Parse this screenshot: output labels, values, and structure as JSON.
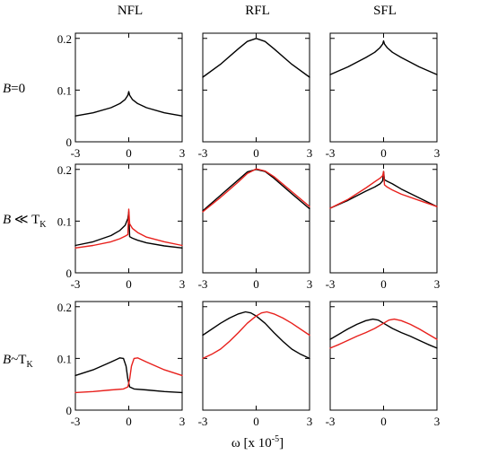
{
  "chart_data": {
    "type": "line",
    "column_titles": [
      "NFL",
      "RFL",
      "SFL"
    ],
    "row_labels": [
      {
        "main": "B",
        "rel": "=0",
        "sub": ""
      },
      {
        "main": "B",
        "rel": " ≪ T",
        "sub": "K"
      },
      {
        "main": "B",
        "rel": "~T",
        "sub": "K"
      }
    ],
    "xlabel": "ω [x 10",
    "xlabel_exp": "-5",
    "xlabel_close": "]",
    "xlim": [
      -3,
      3
    ],
    "ylim": [
      0,
      0.21
    ],
    "xticks": [
      -3,
      0,
      3
    ],
    "yticks": [
      0,
      0.1,
      0.2
    ],
    "xtick_labels": [
      "-3",
      "0",
      "3"
    ],
    "ytick_labels": [
      "0",
      "0.1",
      "0.2"
    ],
    "colors": {
      "black": "#000000",
      "red": "#e8201c"
    },
    "panels": [
      [
        {
          "series": [
            {
              "color": "black",
              "x": [
                -3,
                -2,
                -1,
                -0.5,
                -0.2,
                -0.05,
                0,
                0.05,
                0.2,
                0.5,
                1,
                2,
                3
              ],
              "y": [
                0.05,
                0.056,
                0.066,
                0.074,
                0.082,
                0.09,
                0.097,
                0.09,
                0.082,
                0.074,
                0.066,
                0.056,
                0.05
              ]
            }
          ]
        },
        {
          "series": [
            {
              "color": "black",
              "x": [
                -3,
                -2,
                -1,
                -0.5,
                0,
                0.5,
                1,
                2,
                3
              ],
              "y": [
                0.125,
                0.15,
                0.18,
                0.194,
                0.2,
                0.194,
                0.18,
                0.15,
                0.125
              ]
            }
          ]
        },
        {
          "series": [
            {
              "color": "black",
              "x": [
                -3,
                -2,
                -1,
                -0.5,
                -0.2,
                -0.05,
                0,
                0.05,
                0.2,
                0.5,
                1,
                2,
                3
              ],
              "y": [
                0.13,
                0.145,
                0.163,
                0.173,
                0.182,
                0.189,
                0.195,
                0.189,
                0.182,
                0.173,
                0.163,
                0.145,
                0.13
              ]
            }
          ]
        }
      ],
      [
        {
          "series": [
            {
              "color": "black",
              "x": [
                -3,
                -2,
                -1,
                -0.5,
                -0.2,
                -0.05,
                0,
                0.05,
                0.2,
                0.5,
                1,
                2,
                3
              ],
              "y": [
                0.053,
                0.06,
                0.072,
                0.082,
                0.092,
                0.105,
                0.118,
                0.07,
                0.067,
                0.063,
                0.058,
                0.052,
                0.048
              ]
            },
            {
              "color": "red",
              "x": [
                -3,
                -2,
                -1,
                -0.5,
                -0.2,
                -0.05,
                0,
                0.05,
                0.2,
                0.5,
                1,
                2,
                3
              ],
              "y": [
                0.048,
                0.053,
                0.06,
                0.066,
                0.071,
                0.074,
                0.123,
                0.095,
                0.086,
                0.078,
                0.069,
                0.06,
                0.053
              ]
            }
          ]
        },
        {
          "series": [
            {
              "color": "black",
              "x": [
                -3,
                -2,
                -1,
                -0.5,
                0,
                0.5,
                1,
                2,
                3
              ],
              "y": [
                0.12,
                0.15,
                0.18,
                0.195,
                0.2,
                0.196,
                0.183,
                0.153,
                0.124
              ]
            },
            {
              "color": "red",
              "x": [
                -3,
                -2,
                -1,
                -0.5,
                0,
                0.5,
                1,
                2,
                3
              ],
              "y": [
                0.118,
                0.146,
                0.176,
                0.192,
                0.201,
                0.197,
                0.186,
                0.157,
                0.128
              ]
            }
          ]
        },
        {
          "series": [
            {
              "color": "black",
              "x": [
                -3,
                -2,
                -1,
                -0.5,
                -0.2,
                -0.05,
                0,
                0.05,
                0.2,
                0.5,
                1,
                2,
                3
              ],
              "y": [
                0.125,
                0.14,
                0.158,
                0.166,
                0.172,
                0.178,
                0.196,
                0.18,
                0.177,
                0.172,
                0.162,
                0.145,
                0.128
              ]
            },
            {
              "color": "red",
              "x": [
                -3,
                -2,
                -1,
                -0.5,
                -0.2,
                -0.05,
                0,
                0.05,
                0.2,
                0.5,
                1,
                2,
                3
              ],
              "y": [
                0.125,
                0.142,
                0.164,
                0.176,
                0.183,
                0.188,
                0.196,
                0.17,
                0.166,
                0.16,
                0.152,
                0.14,
                0.128
              ]
            }
          ]
        }
      ],
      [
        {
          "series": [
            {
              "color": "black",
              "x": [
                -3,
                -2,
                -1,
                -0.5,
                -0.3,
                -0.15,
                -0.05,
                0.05,
                0.3,
                1,
                2,
                3
              ],
              "y": [
                0.067,
                0.078,
                0.093,
                0.101,
                0.1,
                0.085,
                0.06,
                0.045,
                0.041,
                0.039,
                0.036,
                0.034
              ]
            },
            {
              "color": "red",
              "x": [
                -3,
                -2,
                -1,
                -0.3,
                -0.05,
                0.05,
                0.15,
                0.3,
                0.5,
                1,
                2,
                3
              ],
              "y": [
                0.034,
                0.036,
                0.039,
                0.041,
                0.045,
                0.06,
                0.085,
                0.1,
                0.101,
                0.093,
                0.078,
                0.067
              ]
            }
          ]
        },
        {
          "series": [
            {
              "color": "black",
              "x": [
                -3,
                -2,
                -1.5,
                -1,
                -0.6,
                -0.3,
                0,
                0.5,
                1,
                1.5,
                2,
                2.5,
                3
              ],
              "y": [
                0.145,
                0.168,
                0.178,
                0.186,
                0.19,
                0.188,
                0.182,
                0.168,
                0.15,
                0.133,
                0.118,
                0.108,
                0.1
              ]
            },
            {
              "color": "red",
              "x": [
                -3,
                -2.5,
                -2,
                -1.5,
                -1,
                -0.5,
                0,
                0.3,
                0.6,
                1,
                1.5,
                2,
                3
              ],
              "y": [
                0.1,
                0.108,
                0.118,
                0.133,
                0.15,
                0.168,
                0.182,
                0.188,
                0.19,
                0.186,
                0.178,
                0.168,
                0.145
              ]
            }
          ]
        },
        {
          "series": [
            {
              "color": "black",
              "x": [
                -3,
                -2,
                -1.5,
                -1,
                -0.6,
                -0.3,
                0,
                0.5,
                1,
                1.5,
                2,
                2.5,
                3
              ],
              "y": [
                0.137,
                0.157,
                0.166,
                0.173,
                0.176,
                0.174,
                0.168,
                0.158,
                0.15,
                0.143,
                0.135,
                0.127,
                0.12
              ]
            },
            {
              "color": "red",
              "x": [
                -3,
                -2.5,
                -2,
                -1.5,
                -1,
                -0.5,
                0,
                0.3,
                0.6,
                1,
                1.5,
                2,
                3
              ],
              "y": [
                0.12,
                0.127,
                0.135,
                0.143,
                0.15,
                0.158,
                0.168,
                0.174,
                0.176,
                0.173,
                0.166,
                0.157,
                0.137
              ]
            }
          ]
        }
      ]
    ]
  }
}
